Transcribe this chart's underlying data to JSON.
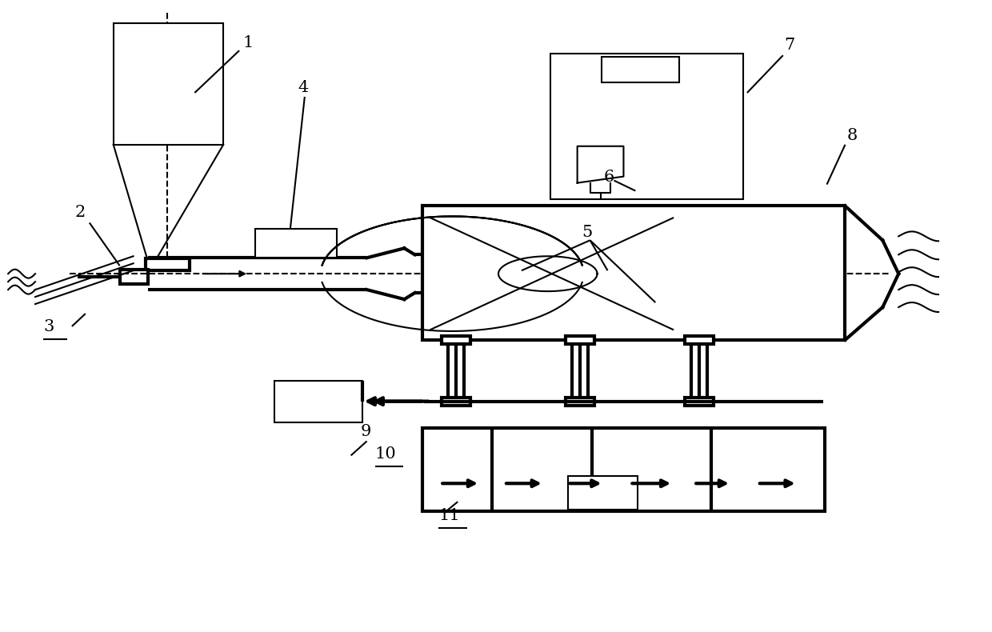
{
  "bg": "#ffffff",
  "lc": "#000000",
  "tlw": 1.5,
  "thlw": 3.0,
  "fs": 15,
  "fw": 12.4,
  "fh": 7.9
}
